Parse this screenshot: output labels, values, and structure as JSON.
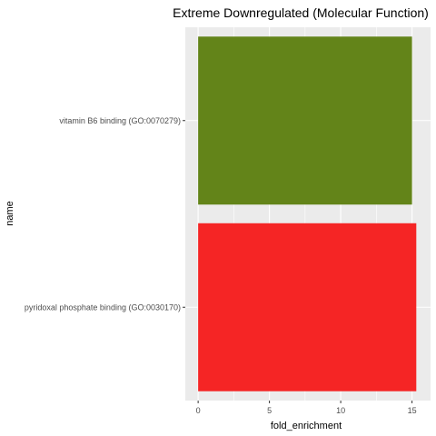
{
  "chart_data": {
    "type": "bar",
    "orientation": "horizontal",
    "title": "Extreme Downregulated (Molecular Function)",
    "xlabel": "fold_enrichment",
    "ylabel": "name",
    "categories": [
      "pyridoxal phosphate binding (GO:0030170)",
      "vitamin B6 binding (GO:0070279)"
    ],
    "values": [
      15.3,
      15.0
    ],
    "bar_colors": [
      "#F52525",
      "#638419"
    ],
    "xlim": [
      -0.9,
      16.3
    ],
    "xticks": [
      0,
      5,
      10,
      15
    ],
    "grid": true,
    "legend": "none",
    "panel_background": "#EBEBEB",
    "grid_color": "#FFFFFF"
  }
}
